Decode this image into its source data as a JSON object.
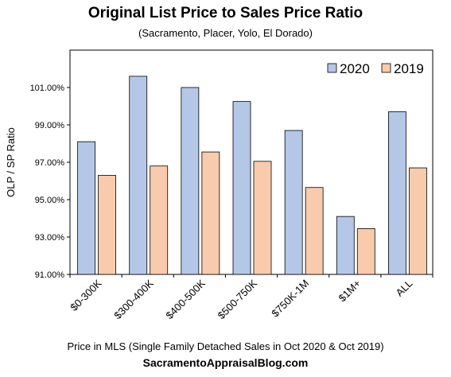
{
  "chart_data": {
    "type": "bar",
    "title": "Original  List Price to Sales Price Ratio",
    "subtitle": "(Sacramento,  Placer, Yolo, El Dorado)",
    "xlabel": "Price in MLS (Single Family Detached Sales in Oct 2020 & Oct 2019)",
    "ylabel": "OLP / SP Ratio",
    "categories": [
      "$0-300K",
      "$300-400K",
      "$400-500K",
      "$500-750K",
      "$750K-1M",
      "$1M+",
      "ALL"
    ],
    "series": [
      {
        "name": "2020",
        "color": "#b4c7e7",
        "values": [
          98.1,
          101.6,
          101.0,
          100.25,
          98.7,
          94.1,
          99.7
        ]
      },
      {
        "name": "2019",
        "color": "#f8cbad",
        "values": [
          96.3,
          96.8,
          97.55,
          97.05,
          95.65,
          93.45,
          96.7
        ]
      }
    ],
    "ylim": [
      91,
      103
    ],
    "yticks": [
      91,
      93,
      95,
      97,
      99,
      101
    ],
    "ytick_labels": [
      "91.00%",
      "93.00%",
      "95.00%",
      "97.00%",
      "99.00%",
      "101.00%"
    ],
    "legend": "top-right",
    "grid": false
  },
  "footer": "SacramentoAppraisalBlog.com"
}
